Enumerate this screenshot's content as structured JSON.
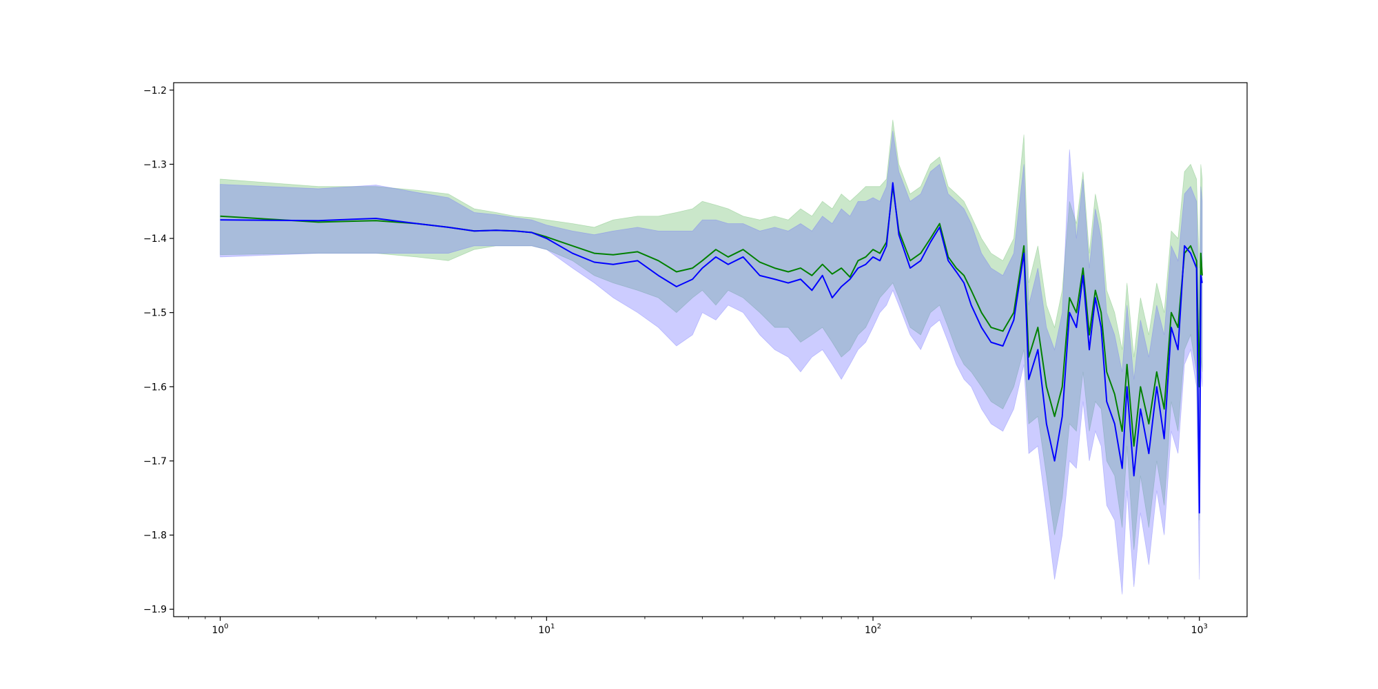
{
  "chart_data": {
    "type": "line",
    "title": "",
    "xlabel": "",
    "ylabel": "",
    "xscale": "log",
    "xlim": [
      0.72,
      1400
    ],
    "ylim": [
      -1.91,
      -1.19
    ],
    "grid": false,
    "legend": "none",
    "x_ticks": [
      {
        "value": 1,
        "base": "10",
        "exp": "0"
      },
      {
        "value": 10,
        "base": "10",
        "exp": "1"
      },
      {
        "value": 100,
        "base": "10",
        "exp": "2"
      },
      {
        "value": 1000,
        "base": "10",
        "exp": "3"
      }
    ],
    "y_ticks": [
      {
        "value": -1.2,
        "label": "−1.2"
      },
      {
        "value": -1.3,
        "label": "−1.3"
      },
      {
        "value": -1.4,
        "label": "−1.4"
      },
      {
        "value": -1.5,
        "label": "−1.5"
      },
      {
        "value": -1.6,
        "label": "−1.6"
      },
      {
        "value": -1.7,
        "label": "−1.7"
      },
      {
        "value": -1.8,
        "label": "−1.8"
      },
      {
        "value": -1.9,
        "label": "−1.9"
      }
    ],
    "series": [
      {
        "color": "#008000",
        "band_color": "#2ca02c",
        "band_opacity": 0.25,
        "x": [
          1,
          2,
          3,
          4,
          5,
          6,
          7,
          8,
          9,
          10,
          12,
          14,
          16,
          19,
          22,
          25,
          28,
          30,
          33,
          36,
          40,
          45,
          50,
          55,
          60,
          65,
          70,
          75,
          80,
          85,
          90,
          95,
          100,
          105,
          110,
          115,
          120,
          130,
          140,
          150,
          160,
          170,
          180,
          190,
          200,
          215,
          230,
          250,
          270,
          290,
          300,
          320,
          340,
          360,
          380,
          400,
          420,
          440,
          460,
          480,
          500,
          520,
          550,
          580,
          600,
          630,
          660,
          700,
          740,
          780,
          820,
          860,
          900,
          940,
          980,
          1000,
          1010,
          1020
        ],
        "mean": [
          -1.37,
          -1.378,
          -1.376,
          -1.38,
          -1.385,
          -1.39,
          -1.389,
          -1.39,
          -1.392,
          -1.398,
          -1.41,
          -1.42,
          -1.422,
          -1.418,
          -1.43,
          -1.445,
          -1.44,
          -1.43,
          -1.415,
          -1.425,
          -1.415,
          -1.432,
          -1.44,
          -1.445,
          -1.44,
          -1.45,
          -1.435,
          -1.448,
          -1.44,
          -1.452,
          -1.43,
          -1.425,
          -1.415,
          -1.42,
          -1.405,
          -1.33,
          -1.39,
          -1.43,
          -1.42,
          -1.4,
          -1.38,
          -1.425,
          -1.44,
          -1.45,
          -1.47,
          -1.5,
          -1.52,
          -1.525,
          -1.5,
          -1.41,
          -1.56,
          -1.52,
          -1.6,
          -1.64,
          -1.6,
          -1.48,
          -1.5,
          -1.44,
          -1.53,
          -1.47,
          -1.5,
          -1.58,
          -1.61,
          -1.66,
          -1.57,
          -1.68,
          -1.6,
          -1.65,
          -1.58,
          -1.63,
          -1.5,
          -1.52,
          -1.42,
          -1.41,
          -1.43,
          -1.6,
          -1.42,
          -1.45
        ],
        "lower": [
          -1.422,
          -1.42,
          -1.42,
          -1.425,
          -1.43,
          -1.415,
          -1.41,
          -1.41,
          -1.41,
          -1.415,
          -1.43,
          -1.45,
          -1.46,
          -1.47,
          -1.48,
          -1.5,
          -1.48,
          -1.47,
          -1.49,
          -1.47,
          -1.48,
          -1.5,
          -1.52,
          -1.52,
          -1.54,
          -1.53,
          -1.52,
          -1.54,
          -1.56,
          -1.55,
          -1.53,
          -1.52,
          -1.5,
          -1.48,
          -1.47,
          -1.46,
          -1.48,
          -1.52,
          -1.53,
          -1.5,
          -1.49,
          -1.52,
          -1.55,
          -1.57,
          -1.58,
          -1.6,
          -1.62,
          -1.63,
          -1.6,
          -1.55,
          -1.65,
          -1.64,
          -1.72,
          -1.8,
          -1.75,
          -1.65,
          -1.66,
          -1.58,
          -1.66,
          -1.62,
          -1.63,
          -1.7,
          -1.72,
          -1.79,
          -1.68,
          -1.82,
          -1.72,
          -1.79,
          -1.7,
          -1.76,
          -1.62,
          -1.66,
          -1.55,
          -1.53,
          -1.58,
          -1.78,
          -1.56,
          -1.58
        ],
        "upper": [
          -1.32,
          -1.33,
          -1.33,
          -1.335,
          -1.34,
          -1.36,
          -1.365,
          -1.37,
          -1.372,
          -1.375,
          -1.38,
          -1.385,
          -1.375,
          -1.37,
          -1.37,
          -1.365,
          -1.36,
          -1.35,
          -1.355,
          -1.36,
          -1.37,
          -1.375,
          -1.37,
          -1.375,
          -1.36,
          -1.37,
          -1.35,
          -1.36,
          -1.34,
          -1.35,
          -1.34,
          -1.33,
          -1.33,
          -1.33,
          -1.32,
          -1.24,
          -1.3,
          -1.34,
          -1.33,
          -1.3,
          -1.29,
          -1.33,
          -1.34,
          -1.35,
          -1.37,
          -1.4,
          -1.42,
          -1.43,
          -1.4,
          -1.26,
          -1.46,
          -1.41,
          -1.49,
          -1.52,
          -1.47,
          -1.35,
          -1.38,
          -1.31,
          -1.42,
          -1.34,
          -1.38,
          -1.47,
          -1.5,
          -1.55,
          -1.46,
          -1.56,
          -1.48,
          -1.53,
          -1.46,
          -1.5,
          -1.39,
          -1.4,
          -1.31,
          -1.3,
          -1.32,
          -1.44,
          -1.3,
          -1.32
        ]
      },
      {
        "color": "#0000ff",
        "band_color": "#6464ff",
        "band_opacity": 0.33,
        "x": [
          1,
          2,
          3,
          4,
          5,
          6,
          7,
          8,
          9,
          10,
          12,
          14,
          16,
          19,
          22,
          25,
          28,
          30,
          33,
          36,
          40,
          45,
          50,
          55,
          60,
          65,
          70,
          75,
          80,
          85,
          90,
          95,
          100,
          105,
          110,
          115,
          120,
          130,
          140,
          150,
          160,
          170,
          180,
          190,
          200,
          215,
          230,
          250,
          270,
          290,
          300,
          320,
          340,
          360,
          380,
          400,
          420,
          440,
          460,
          480,
          500,
          520,
          550,
          580,
          600,
          630,
          660,
          700,
          740,
          780,
          820,
          860,
          900,
          940,
          980,
          1000,
          1010,
          1020
        ],
        "mean": [
          -1.375,
          -1.376,
          -1.373,
          -1.38,
          -1.385,
          -1.39,
          -1.389,
          -1.39,
          -1.392,
          -1.4,
          -1.42,
          -1.432,
          -1.435,
          -1.43,
          -1.45,
          -1.465,
          -1.455,
          -1.44,
          -1.425,
          -1.435,
          -1.425,
          -1.45,
          -1.455,
          -1.46,
          -1.455,
          -1.47,
          -1.45,
          -1.48,
          -1.465,
          -1.455,
          -1.44,
          -1.435,
          -1.425,
          -1.43,
          -1.41,
          -1.325,
          -1.395,
          -1.44,
          -1.43,
          -1.405,
          -1.385,
          -1.43,
          -1.445,
          -1.46,
          -1.49,
          -1.52,
          -1.54,
          -1.545,
          -1.51,
          -1.42,
          -1.59,
          -1.55,
          -1.65,
          -1.7,
          -1.64,
          -1.5,
          -1.52,
          -1.45,
          -1.55,
          -1.48,
          -1.52,
          -1.62,
          -1.65,
          -1.71,
          -1.6,
          -1.72,
          -1.63,
          -1.69,
          -1.6,
          -1.67,
          -1.52,
          -1.55,
          -1.41,
          -1.42,
          -1.44,
          -1.77,
          -1.45,
          -1.46
        ],
        "lower": [
          -1.425,
          -1.42,
          -1.42,
          -1.42,
          -1.42,
          -1.41,
          -1.41,
          -1.41,
          -1.41,
          -1.415,
          -1.44,
          -1.46,
          -1.48,
          -1.5,
          -1.52,
          -1.545,
          -1.53,
          -1.5,
          -1.51,
          -1.49,
          -1.5,
          -1.53,
          -1.55,
          -1.56,
          -1.58,
          -1.56,
          -1.55,
          -1.57,
          -1.59,
          -1.57,
          -1.55,
          -1.54,
          -1.52,
          -1.5,
          -1.49,
          -1.47,
          -1.49,
          -1.53,
          -1.55,
          -1.52,
          -1.51,
          -1.54,
          -1.57,
          -1.59,
          -1.6,
          -1.63,
          -1.65,
          -1.66,
          -1.63,
          -1.57,
          -1.69,
          -1.68,
          -1.77,
          -1.86,
          -1.8,
          -1.7,
          -1.71,
          -1.62,
          -1.7,
          -1.66,
          -1.68,
          -1.76,
          -1.78,
          -1.88,
          -1.74,
          -1.87,
          -1.77,
          -1.84,
          -1.74,
          -1.8,
          -1.66,
          -1.69,
          -1.57,
          -1.55,
          -1.6,
          -1.86,
          -1.58,
          -1.6
        ],
        "upper": [
          -1.327,
          -1.333,
          -1.328,
          -1.338,
          -1.345,
          -1.365,
          -1.368,
          -1.372,
          -1.375,
          -1.382,
          -1.39,
          -1.395,
          -1.39,
          -1.385,
          -1.39,
          -1.39,
          -1.39,
          -1.375,
          -1.375,
          -1.38,
          -1.38,
          -1.39,
          -1.385,
          -1.39,
          -1.38,
          -1.39,
          -1.37,
          -1.38,
          -1.36,
          -1.37,
          -1.35,
          -1.35,
          -1.345,
          -1.35,
          -1.33,
          -1.255,
          -1.31,
          -1.35,
          -1.34,
          -1.31,
          -1.3,
          -1.34,
          -1.35,
          -1.36,
          -1.38,
          -1.42,
          -1.44,
          -1.45,
          -1.42,
          -1.3,
          -1.49,
          -1.44,
          -1.52,
          -1.55,
          -1.5,
          -1.28,
          -1.4,
          -1.32,
          -1.44,
          -1.36,
          -1.4,
          -1.5,
          -1.53,
          -1.58,
          -1.49,
          -1.59,
          -1.51,
          -1.56,
          -1.49,
          -1.53,
          -1.41,
          -1.43,
          -1.34,
          -1.33,
          -1.35,
          -1.52,
          -1.33,
          -1.35
        ]
      }
    ]
  }
}
